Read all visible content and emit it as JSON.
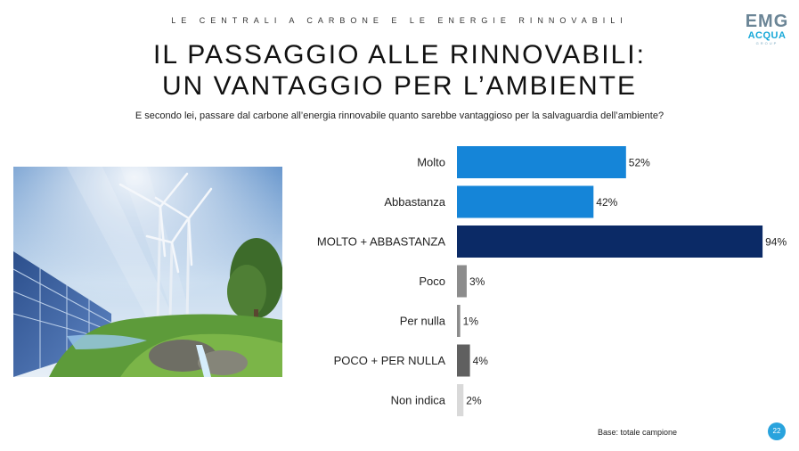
{
  "header": {
    "kicker": "LE CENTRALI A CARBONE E LE ENERGIE RINNOVABILI",
    "title_line1": "IL PASSAGGIO ALLE RINNOVABILI:",
    "title_line2": "UN VANTAGGIO PER L’AMBIENTE",
    "question": "E secondo lei, passare dal carbone all’energia rinnovabile quanto sarebbe vantaggioso per la salvaguardia dell’ambiente?"
  },
  "logo": {
    "line1": "EMG",
    "line2": "ACQUA",
    "line3": "GROUP"
  },
  "footer": {
    "base": "Base: totale campione",
    "page": "22"
  },
  "colors": {
    "bright_blue": "#1585d8",
    "navy": "#0b2a66",
    "mid_gray": "#8c8c8c",
    "dark_gray": "#606060",
    "light_gray": "#d9d9d9",
    "badge": "#29a3dd"
  },
  "chart_data": {
    "type": "bar",
    "orientation": "horizontal",
    "categories": [
      "Molto",
      "Abbastanza",
      "MOLTO + ABBASTANZA",
      "Poco",
      "Per nulla",
      "POCO + PER NULLA",
      "Non indica"
    ],
    "values": [
      52,
      42,
      94,
      3,
      1,
      4,
      2
    ],
    "value_labels": [
      "52%",
      "42%",
      "94%",
      "3%",
      "1%",
      "4%",
      "2%"
    ],
    "bar_colors": [
      "#1585d8",
      "#1585d8",
      "#0b2a66",
      "#8c8c8c",
      "#8c8c8c",
      "#606060",
      "#d9d9d9"
    ],
    "unit": "%",
    "xlim": [
      0,
      100
    ],
    "grid": false,
    "legend": "none"
  }
}
